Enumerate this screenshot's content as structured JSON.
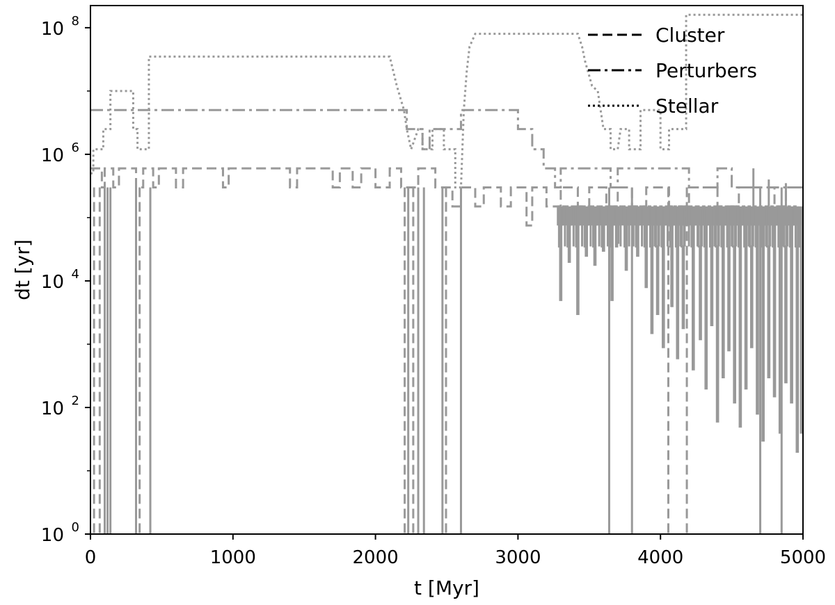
{
  "chart_data": {
    "type": "line",
    "title": "",
    "xlabel": "t [Myr]",
    "ylabel": "dt [yr]",
    "xlim": [
      0,
      5000
    ],
    "ylim_exponent": [
      0,
      8.35
    ],
    "yscale": "log",
    "grid": false,
    "legend_placement": "top-right",
    "x_ticks": [
      {
        "value": 0,
        "label": "0"
      },
      {
        "value": 1000,
        "label": "1000"
      },
      {
        "value": 2000,
        "label": "2000"
      },
      {
        "value": 3000,
        "label": "3000"
      },
      {
        "value": 4000,
        "label": "4000"
      },
      {
        "value": 5000,
        "label": "5000"
      }
    ],
    "y_ticks": [
      {
        "exponent": 0,
        "base": "10",
        "exp": "0"
      },
      {
        "exponent": 2,
        "base": "10",
        "exp": "2"
      },
      {
        "exponent": 4,
        "base": "10",
        "exp": "4"
      },
      {
        "exponent": 6,
        "base": "10",
        "exp": "6"
      },
      {
        "exponent": 8,
        "base": "10",
        "exp": "8"
      }
    ],
    "line_color": "#999999",
    "series": [
      {
        "name": "Cluster",
        "style": "dashed",
        "points": [
          [
            0,
            600000.0
          ],
          [
            80,
            600000.0
          ],
          [
            80,
            300000.0
          ],
          [
            100,
            300000.0
          ],
          [
            100,
            600000.0
          ],
          [
            160,
            600000.0
          ],
          [
            160,
            300000.0
          ],
          [
            200,
            300000.0
          ],
          [
            200,
            600000.0
          ],
          [
            320,
            600000.0
          ],
          [
            320,
            300000.0
          ],
          [
            370,
            300000.0
          ],
          [
            370,
            600000.0
          ],
          [
            440,
            600000.0
          ],
          [
            440,
            300000.0
          ],
          [
            480,
            300000.0
          ],
          [
            480,
            600000.0
          ],
          [
            600,
            600000.0
          ],
          [
            600,
            300000.0
          ],
          [
            650,
            300000.0
          ],
          [
            650,
            600000.0
          ],
          [
            930,
            600000.0
          ],
          [
            930,
            300000.0
          ],
          [
            970,
            300000.0
          ],
          [
            970,
            600000.0
          ],
          [
            1400,
            600000.0
          ],
          [
            1400,
            300000.0
          ],
          [
            1450,
            300000.0
          ],
          [
            1450,
            600000.0
          ],
          [
            1700,
            600000.0
          ],
          [
            1700,
            300000.0
          ],
          [
            1750,
            300000.0
          ],
          [
            1750,
            600000.0
          ],
          [
            1840,
            600000.0
          ],
          [
            1840,
            300000.0
          ],
          [
            1900,
            300000.0
          ],
          [
            1900,
            600000.0
          ],
          [
            2000,
            600000.0
          ],
          [
            2000,
            300000.0
          ],
          [
            2100,
            300000.0
          ],
          [
            2100,
            600000.0
          ],
          [
            2180,
            600000.0
          ],
          [
            2180,
            300000.0
          ],
          [
            2300,
            300000.0
          ],
          [
            2300,
            600000.0
          ],
          [
            2420,
            600000.0
          ],
          [
            2420,
            300000.0
          ],
          [
            2540,
            300000.0
          ],
          [
            2540,
            150000.0
          ],
          [
            2600,
            150000.0
          ],
          [
            2600,
            300000.0
          ],
          [
            2700,
            300000.0
          ],
          [
            2700,
            150000.0
          ],
          [
            2760,
            150000.0
          ],
          [
            2760,
            300000.0
          ],
          [
            2880,
            300000.0
          ],
          [
            2880,
            150000.0
          ],
          [
            2950,
            150000.0
          ],
          [
            2950,
            300000.0
          ],
          [
            3060,
            300000.0
          ],
          [
            3060,
            75000.0
          ],
          [
            3100,
            75000.0
          ],
          [
            3100,
            300000.0
          ],
          [
            3200,
            300000.0
          ],
          [
            3200,
            150000.0
          ],
          [
            3300,
            150000.0
          ],
          [
            3300,
            300000.0
          ],
          [
            3420,
            300000.0
          ],
          [
            3420,
            150000.0
          ],
          [
            3500,
            150000.0
          ],
          [
            3500,
            300000.0
          ],
          [
            3620,
            300000.0
          ],
          [
            3620,
            150000.0
          ],
          [
            3700,
            150000.0
          ],
          [
            3700,
            300000.0
          ],
          [
            3800,
            300000.0
          ],
          [
            3800,
            150000.0
          ],
          [
            3900,
            150000.0
          ],
          [
            3900,
            300000.0
          ],
          [
            4060,
            300000.0
          ],
          [
            4060,
            150000.0
          ],
          [
            4200,
            150000.0
          ],
          [
            4200,
            300000.0
          ],
          [
            4400,
            300000.0
          ],
          [
            4400,
            150000.0
          ],
          [
            4550,
            150000.0
          ],
          [
            4550,
            300000.0
          ],
          [
            4800,
            300000.0
          ],
          [
            4800,
            150000.0
          ],
          [
            4880,
            150000.0
          ],
          [
            4880,
            300000.0
          ],
          [
            5000,
            300000.0
          ]
        ]
      },
      {
        "name": "Perturbers",
        "style": "dashdot",
        "points": [
          [
            0,
            5000000.0
          ],
          [
            2220,
            5000000.0
          ],
          [
            2220,
            2500000.0
          ],
          [
            2330,
            2500000.0
          ],
          [
            2330,
            1200000.0
          ],
          [
            2380,
            1200000.0
          ],
          [
            2380,
            2500000.0
          ],
          [
            2600,
            2500000.0
          ],
          [
            2600,
            5000000.0
          ],
          [
            3000,
            5000000.0
          ],
          [
            3000,
            2500000.0
          ],
          [
            3100,
            2500000.0
          ],
          [
            3100,
            1200000.0
          ],
          [
            3180,
            1200000.0
          ],
          [
            3180,
            600000.0
          ],
          [
            3260,
            600000.0
          ],
          [
            3260,
            300000.0
          ],
          [
            3300,
            300000.0
          ],
          [
            3300,
            600000.0
          ],
          [
            3650,
            600000.0
          ],
          [
            3650,
            300000.0
          ],
          [
            3700,
            300000.0
          ],
          [
            3700,
            600000.0
          ],
          [
            4200,
            600000.0
          ],
          [
            4200,
            300000.0
          ],
          [
            4400,
            300000.0
          ],
          [
            4400,
            600000.0
          ],
          [
            4500,
            600000.0
          ],
          [
            4500,
            300000.0
          ],
          [
            5000,
            300000.0
          ]
        ]
      },
      {
        "name": "Stellar",
        "style": "dotted",
        "points": [
          [
            0,
            500000.0
          ],
          [
            20,
            500000.0
          ],
          [
            20,
            1200000.0
          ],
          [
            90,
            1200000.0
          ],
          [
            90,
            2500000.0
          ],
          [
            140,
            2500000.0
          ],
          [
            140,
            10000000.0
          ],
          [
            200,
            10000000.0
          ],
          [
            200,
            10000000.0
          ],
          [
            300,
            10000000.0
          ],
          [
            300,
            2500000.0
          ],
          [
            330,
            2500000.0
          ],
          [
            330,
            1200000.0
          ],
          [
            410,
            1200000.0
          ],
          [
            410,
            35000000.0
          ],
          [
            2100,
            35000000.0
          ],
          [
            2150,
            12000000.0
          ],
          [
            2200,
            5000000.0
          ],
          [
            2220,
            2500000.0
          ],
          [
            2250,
            1200000.0
          ],
          [
            2300,
            2500000.0
          ],
          [
            2330,
            2500000.0
          ],
          [
            2330,
            1200000.0
          ],
          [
            2400,
            1200000.0
          ],
          [
            2400,
            2500000.0
          ],
          [
            2480,
            2500000.0
          ],
          [
            2480,
            1200000.0
          ],
          [
            2560,
            1200000.0
          ],
          [
            2560,
            300000.0
          ],
          [
            2600,
            300000.0
          ],
          [
            2620,
            5000000.0
          ],
          [
            2640,
            20000000.0
          ],
          [
            2660,
            50000000.0
          ],
          [
            2700,
            80000000.0
          ],
          [
            3420,
            80000000.0
          ],
          [
            3450,
            50000000.0
          ],
          [
            3470,
            30000000.0
          ],
          [
            3520,
            12000000.0
          ],
          [
            3560,
            10000000.0
          ],
          [
            3580,
            5000000.0
          ],
          [
            3600,
            2500000.0
          ],
          [
            3650,
            2500000.0
          ],
          [
            3650,
            1200000.0
          ],
          [
            3700,
            1200000.0
          ],
          [
            3720,
            2500000.0
          ],
          [
            3780,
            2500000.0
          ],
          [
            3780,
            1200000.0
          ],
          [
            3860,
            1200000.0
          ],
          [
            3860,
            5000000.0
          ],
          [
            4000,
            5000000.0
          ],
          [
            4000,
            1200000.0
          ],
          [
            4060,
            1200000.0
          ],
          [
            4060,
            2500000.0
          ],
          [
            4180,
            2500000.0
          ],
          [
            4180,
            160000000.0
          ],
          [
            5000,
            160000000.0
          ]
        ]
      }
    ],
    "drop_lines": [
      {
        "x": 25,
        "to": 1.0
      },
      {
        "x": 65,
        "to": 1.0
      },
      {
        "x": 100,
        "to": 1.0
      },
      {
        "x": 120,
        "to": 1.0
      },
      {
        "x": 140,
        "to": 1.0
      },
      {
        "x": 320,
        "to": 1.0
      },
      {
        "x": 345,
        "to": 1.0
      },
      {
        "x": 420,
        "to": 1.0
      },
      {
        "x": 2205,
        "to": 1.0
      },
      {
        "x": 2230,
        "to": 1.0
      },
      {
        "x": 2265,
        "to": 1.0
      },
      {
        "x": 2300,
        "to": 1.0
      },
      {
        "x": 2340,
        "to": 1.0
      },
      {
        "x": 2470,
        "to": 1.0
      },
      {
        "x": 2495,
        "to": 1.0
      },
      {
        "x": 2600,
        "to": 1.0
      },
      {
        "x": 3640,
        "to": 1.0
      },
      {
        "x": 3800,
        "to": 1.0
      },
      {
        "x": 4055,
        "to": 1.0
      },
      {
        "x": 4185,
        "to": 1.0
      },
      {
        "x": 4700,
        "to": 1.0
      },
      {
        "x": 4850,
        "to": 1.0
      }
    ],
    "noise_region": {
      "x_start": 3280,
      "x_end": 5000,
      "top": 150000.0,
      "minima": [
        [
          3300,
          5000
        ],
        [
          3360,
          20000
        ],
        [
          3420,
          3000
        ],
        [
          3480,
          25000
        ],
        [
          3540,
          18000
        ],
        [
          3600,
          30000
        ],
        [
          3660,
          5000
        ],
        [
          3700,
          40000
        ],
        [
          3760,
          15000
        ],
        [
          3840,
          25000
        ],
        [
          3900,
          8000
        ],
        [
          3940,
          1500
        ],
        [
          3980,
          3000
        ],
        [
          4020,
          900
        ],
        [
          4080,
          4000
        ],
        [
          4120,
          600
        ],
        [
          4160,
          1800
        ],
        [
          4230,
          400
        ],
        [
          4280,
          1200
        ],
        [
          4320,
          200
        ],
        [
          4360,
          2000
        ],
        [
          4400,
          60
        ],
        [
          4440,
          300
        ],
        [
          4480,
          800
        ],
        [
          4520,
          120
        ],
        [
          4560,
          50
        ],
        [
          4600,
          200
        ],
        [
          4640,
          900
        ],
        [
          4680,
          80
        ],
        [
          4720,
          30
        ],
        [
          4760,
          300
        ],
        [
          4800,
          150
        ],
        [
          4840,
          40
        ],
        [
          4880,
          250
        ],
        [
          4920,
          120
        ],
        [
          4960,
          20
        ],
        [
          4990,
          40
        ]
      ]
    },
    "upper_spikes": [
      [
        4652,
        600000.0
      ],
      [
        4760,
        400000.0
      ],
      [
        4880,
        350000.0
      ]
    ]
  },
  "legend": {
    "items": [
      {
        "label": "Cluster",
        "style": "dashed"
      },
      {
        "label": "Perturbers",
        "style": "dashdot"
      },
      {
        "label": "Stellar",
        "style": "dotted"
      }
    ]
  }
}
